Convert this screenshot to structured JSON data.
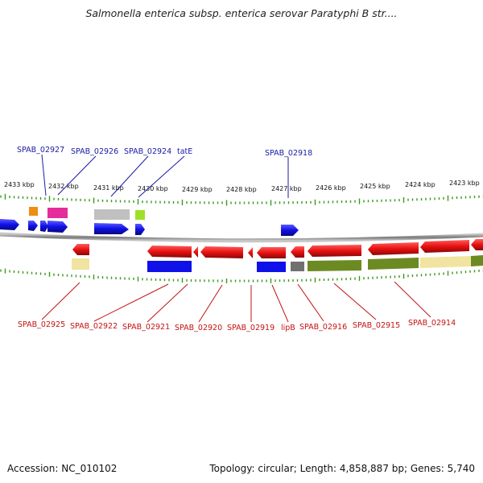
{
  "title": "Salmonella enterica subsp. enterica serovar Paratyphi B str....",
  "footer": {
    "accession": "Accession: NC_010102",
    "summary": "Topology: circular; Length: 4,858,887 bp; Genes: 5,740"
  },
  "scale_labels": [
    "2433 kbp",
    "2432 kbp",
    "2431 kbp",
    "2430 kbp",
    "2429 kbp",
    "2428 kbp",
    "2427 kbp",
    "2426 kbp",
    "2425 kbp",
    "2424 kbp",
    "2423 kbp"
  ],
  "top_gene_labels": [
    "SPAB_02927",
    "SPAB_02926",
    "SPAB_02924",
    "tatE",
    "SPAB_02918"
  ],
  "bottom_gene_labels": [
    "SPAB_02925",
    "SPAB_02922",
    "SPAB_02921",
    "SPAB_02920",
    "SPAB_02919",
    "lipB",
    "SPAB_02916",
    "SPAB_02915",
    "SPAB_02914"
  ],
  "colors": {
    "strand_plus": "#1010e8",
    "strand_minus": "#e81010",
    "backbone": "#8a8a8a",
    "top_label": "#1a1aa8",
    "bottom_label": "#c41212",
    "tick": "#3a9a1a",
    "cog_orange": "#f08c10",
    "cog_magenta": "#e62c9a",
    "cog_gray": "#c0c0c0",
    "cog_lime": "#9ee028",
    "cog_yellow": "#f0e4a0",
    "cog_olive": "#6c8a22",
    "cog_darkgray": "#707070"
  }
}
